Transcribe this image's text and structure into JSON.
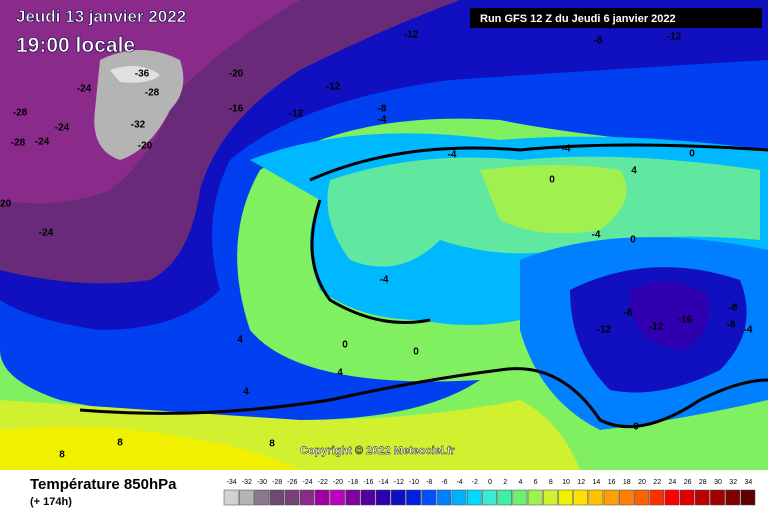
{
  "header": {
    "date": "Jeudi 13 janvier 2022",
    "time": "19:00 locale",
    "run": "Run GFS 12 Z du Jeudi 6 janvier 2022"
  },
  "map": {
    "copyright": "Copyright © 2022 Meteociel.fr",
    "contour_labels": [
      "-12",
      "-8",
      "-12",
      "-20",
      "-24",
      "-28",
      "-12",
      "-16",
      "-12",
      "-8",
      "-4",
      "-28",
      "-24",
      "-28",
      "-24",
      "-20",
      "-24",
      "-20",
      "-4",
      "-4",
      "0",
      "4",
      "0",
      "-4",
      "0",
      "-4",
      "-8",
      "-12",
      "-12",
      "-16",
      "-8",
      "-8",
      "-4",
      "4",
      "0",
      "0",
      "4",
      "4",
      "8",
      "8",
      "8",
      "0",
      "-36",
      "-32"
    ]
  },
  "footer": {
    "variable": "Température 850hPa",
    "lead": "(+ 174h)"
  },
  "scale": {
    "values": [
      -34,
      -32,
      -30,
      -28,
      -26,
      -24,
      -22,
      -20,
      -18,
      -16,
      -14,
      -12,
      -10,
      -8,
      -6,
      -4,
      -2,
      0,
      2,
      4,
      6,
      8,
      10,
      12,
      14,
      16,
      18,
      20,
      22,
      24,
      26,
      28,
      30,
      32,
      34
    ],
    "colors": [
      "#d2d2d2",
      "#b4b4b4",
      "#8c788c",
      "#6e4a6e",
      "#784078",
      "#8a2a8a",
      "#a000a0",
      "#c000c0",
      "#8000a0",
      "#5000a0",
      "#3000b0",
      "#1010c0",
      "#0020e0",
      "#0050ff",
      "#0080ff",
      "#00b0ff",
      "#00d8ff",
      "#40e8d0",
      "#40f0a0",
      "#70f070",
      "#a0f050",
      "#d0f030",
      "#f0f000",
      "#ffe000",
      "#ffc000",
      "#ffa000",
      "#ff8000",
      "#ff6000",
      "#ff3000",
      "#ff0000",
      "#e00000",
      "#c00000",
      "#a00000",
      "#800000",
      "#600000"
    ]
  }
}
